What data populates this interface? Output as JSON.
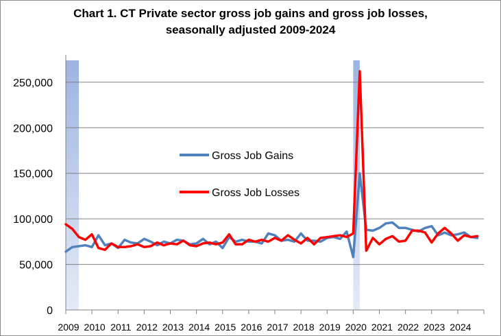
{
  "chart_data": {
    "type": "line",
    "title": "Chart 1. CT Private sector gross job gains and gross job losses,",
    "subtitle": "seasonally adjusted 2009-2024",
    "xlabel": "",
    "ylabel": "",
    "ylim": [
      0,
      280000
    ],
    "y_ticks": [
      "0",
      "50,000",
      "100,000",
      "150,000",
      "200,000",
      "250,000"
    ],
    "x_ticks": [
      "2009",
      "2010",
      "2011",
      "2012",
      "2013",
      "2014",
      "2015",
      "2016",
      "2017",
      "2018",
      "2019",
      "2020",
      "2021",
      "2022",
      "2023",
      "2024"
    ],
    "xlim": [
      2009.0,
      2025.0
    ],
    "grid": "horizontal",
    "legend_position": "center-left",
    "recession_shading": [
      [
        2009.0,
        2009.5
      ],
      [
        2020.0,
        2020.25
      ]
    ],
    "colors": {
      "recession": "#9db3e0",
      "gains": "#4f81bd",
      "losses": "#ff0000",
      "grid": "#7f7f7f"
    },
    "series": [
      {
        "name": "Gross Job Gains",
        "color": "#4f81bd",
        "x": [
          2009.0,
          2009.25,
          2009.5,
          2009.75,
          2010.0,
          2010.25,
          2010.5,
          2010.75,
          2011.0,
          2011.25,
          2011.5,
          2011.75,
          2012.0,
          2012.25,
          2012.5,
          2012.75,
          2013.0,
          2013.25,
          2013.5,
          2013.75,
          2014.0,
          2014.25,
          2014.5,
          2014.75,
          2015.0,
          2015.25,
          2015.5,
          2015.75,
          2016.0,
          2016.25,
          2016.5,
          2016.75,
          2017.0,
          2017.25,
          2017.5,
          2017.75,
          2018.0,
          2018.25,
          2018.5,
          2018.75,
          2019.0,
          2019.25,
          2019.5,
          2019.75,
          2020.0,
          2020.25,
          2020.5,
          2020.75,
          2021.0,
          2021.25,
          2021.5,
          2021.75,
          2022.0,
          2022.25,
          2022.5,
          2022.75,
          2023.0,
          2023.25,
          2023.5,
          2023.75,
          2024.0,
          2024.25,
          2024.5,
          2024.75
        ],
        "values": [
          64000,
          69000,
          70000,
          71000,
          69000,
          82000,
          71000,
          73000,
          68000,
          77000,
          74000,
          73000,
          78000,
          75000,
          71000,
          75000,
          73000,
          77000,
          76000,
          72000,
          73000,
          78000,
          72000,
          75000,
          68000,
          80000,
          75000,
          77000,
          75000,
          75000,
          73000,
          84000,
          82000,
          76000,
          77000,
          75000,
          84000,
          76000,
          76000,
          75000,
          79000,
          80000,
          78000,
          86000,
          58000,
          150000,
          88000,
          87000,
          90000,
          95000,
          96000,
          90000,
          90000,
          88000,
          86000,
          90000,
          92000,
          82000,
          85000,
          82000,
          83000,
          85000,
          80000,
          79000
        ]
      },
      {
        "name": "Gross Job Losses",
        "color": "#ff0000",
        "x": [
          2009.0,
          2009.25,
          2009.5,
          2009.75,
          2010.0,
          2010.25,
          2010.5,
          2010.75,
          2011.0,
          2011.25,
          2011.5,
          2011.75,
          2012.0,
          2012.25,
          2012.5,
          2012.75,
          2013.0,
          2013.25,
          2013.5,
          2013.75,
          2014.0,
          2014.25,
          2014.5,
          2014.75,
          2015.0,
          2015.25,
          2015.5,
          2015.75,
          2016.0,
          2016.25,
          2016.5,
          2016.75,
          2017.0,
          2017.25,
          2017.5,
          2017.75,
          2018.0,
          2018.25,
          2018.5,
          2018.75,
          2019.0,
          2019.25,
          2019.5,
          2019.75,
          2020.0,
          2020.25,
          2020.5,
          2020.75,
          2021.0,
          2021.25,
          2021.5,
          2021.75,
          2022.0,
          2022.25,
          2022.5,
          2022.75,
          2023.0,
          2023.25,
          2023.5,
          2023.75,
          2024.0,
          2024.25,
          2024.5,
          2024.75
        ],
        "values": [
          94000,
          89000,
          80000,
          77000,
          83000,
          68000,
          66000,
          73000,
          69000,
          69000,
          70000,
          72000,
          69000,
          70000,
          74000,
          71000,
          73000,
          72000,
          76000,
          71000,
          70000,
          73000,
          74000,
          72000,
          74000,
          83000,
          72000,
          72000,
          77000,
          75000,
          77000,
          75000,
          79000,
          76000,
          82000,
          77000,
          73000,
          79000,
          72000,
          79000,
          80000,
          81000,
          82000,
          80000,
          84000,
          262000,
          65000,
          79000,
          72000,
          78000,
          81000,
          75000,
          76000,
          87000,
          87000,
          85000,
          74000,
          84000,
          90000,
          84000,
          76000,
          82000,
          80000,
          81000
        ]
      }
    ]
  }
}
